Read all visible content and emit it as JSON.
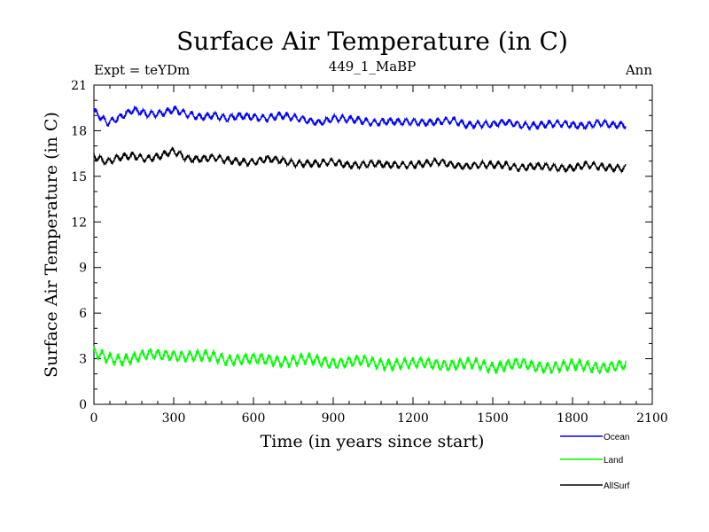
{
  "chart_data": {
    "type": "line",
    "title": "Surface Air Temperature (in C)",
    "subtitle": "449_1_MaBP",
    "annotation_left": "Expt = teYDm",
    "annotation_right": "Ann",
    "xlabel": "Time (in years since start)",
    "ylabel": "Surface Air Temperature (in C)",
    "xlim": [
      0,
      2100
    ],
    "ylim": [
      0,
      21
    ],
    "x_ticks": [
      0,
      300,
      600,
      900,
      1200,
      1500,
      1800,
      2100
    ],
    "y_ticks": [
      0,
      3,
      6,
      9,
      12,
      15,
      18,
      21
    ],
    "x_tick_labels": [
      "0",
      "300",
      "600",
      "900",
      "1200",
      "1500",
      "1800",
      "2100"
    ],
    "y_tick_labels": [
      "0",
      "3",
      "6",
      "9",
      "12",
      "15",
      "18",
      "21"
    ],
    "grid": false,
    "legend_position": "bottom-right",
    "x": [
      0,
      50,
      100,
      150,
      200,
      250,
      300,
      350,
      400,
      450,
      500,
      550,
      600,
      650,
      700,
      750,
      800,
      850,
      900,
      950,
      1000,
      1050,
      1100,
      1150,
      1200,
      1250,
      1300,
      1350,
      1400,
      1450,
      1500,
      1550,
      1600,
      1650,
      1700,
      1750,
      1800,
      1850,
      1900,
      1950,
      2000
    ],
    "series": [
      {
        "name": "Ocean",
        "color": "#0000ff",
        "values": [
          19.3,
          18.6,
          18.9,
          19.3,
          19.1,
          19.2,
          19.4,
          19.0,
          18.9,
          19.1,
          18.8,
          18.9,
          18.9,
          18.9,
          19.0,
          18.8,
          18.7,
          18.6,
          18.8,
          18.7,
          18.7,
          18.6,
          18.6,
          18.5,
          18.6,
          18.6,
          18.6,
          18.6,
          18.4,
          18.5,
          18.4,
          18.5,
          18.4,
          18.4,
          18.4,
          18.4,
          18.4,
          18.4,
          18.5,
          18.3,
          18.4
        ]
      },
      {
        "name": "Land",
        "color": "#00ff00",
        "values": [
          3.3,
          3.0,
          3.0,
          3.1,
          3.2,
          3.2,
          3.3,
          3.2,
          3.1,
          3.1,
          3.0,
          3.0,
          2.9,
          2.9,
          2.9,
          2.9,
          2.9,
          2.8,
          2.8,
          2.8,
          2.8,
          2.7,
          2.7,
          2.7,
          2.6,
          2.7,
          2.7,
          2.6,
          2.6,
          2.6,
          2.5,
          2.6,
          2.6,
          2.5,
          2.5,
          2.5,
          2.5,
          2.5,
          2.5,
          2.5,
          2.5
        ]
      },
      {
        "name": "AllSurf",
        "color": "#000000",
        "values": [
          16.4,
          15.9,
          16.2,
          16.4,
          16.2,
          16.3,
          16.6,
          16.2,
          16.2,
          16.2,
          16.0,
          16.0,
          16.0,
          16.1,
          16.0,
          15.9,
          15.9,
          15.8,
          15.9,
          15.8,
          15.8,
          15.8,
          15.7,
          15.8,
          15.8,
          15.8,
          15.9,
          15.8,
          15.7,
          15.7,
          15.7,
          15.8,
          15.6,
          15.6,
          15.6,
          15.6,
          15.6,
          15.7,
          15.6,
          15.6,
          15.6
        ]
      }
    ]
  }
}
